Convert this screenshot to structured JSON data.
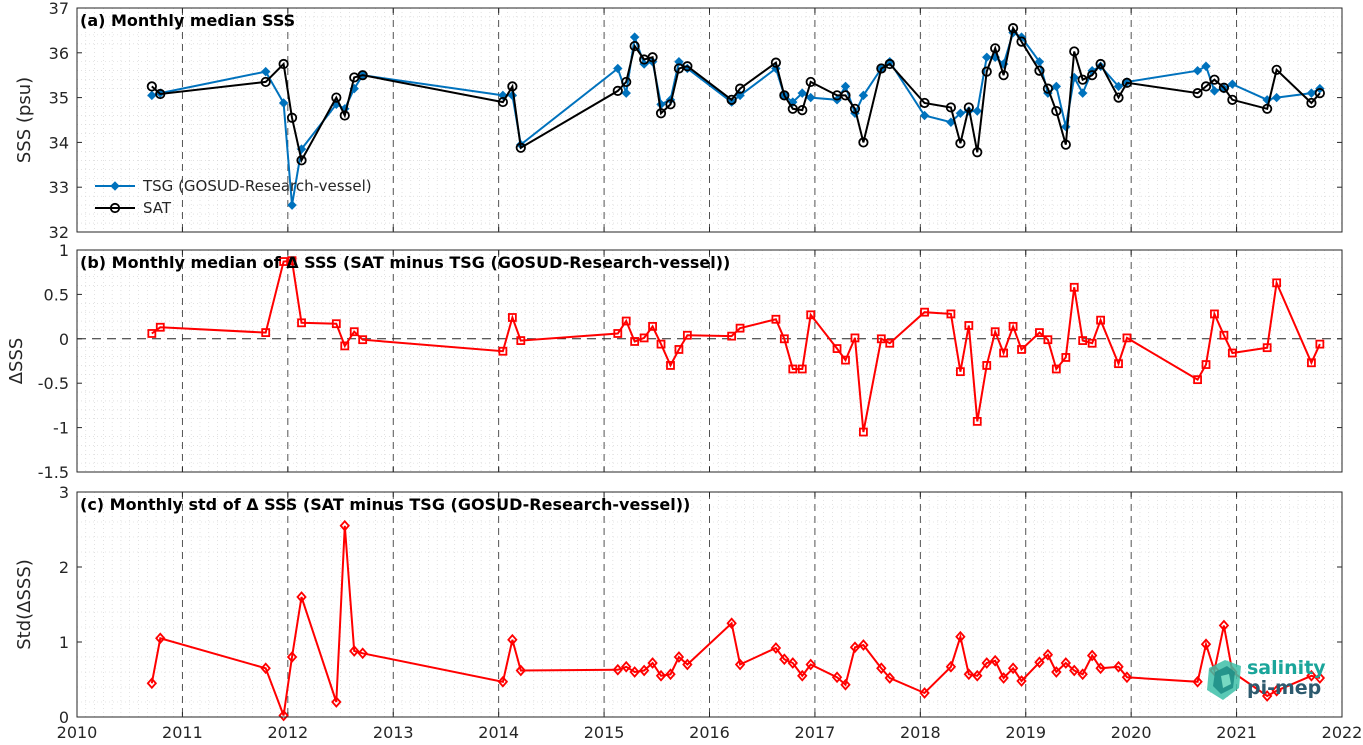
{
  "chart_data": [
    {
      "type": "line",
      "title": "(a) Monthly median SSS",
      "xlabel": "",
      "ylabel": "SSS (psu)",
      "xlim": [
        2010,
        2022
      ],
      "ylim": [
        32,
        37
      ],
      "xticks": [
        "2010",
        "2011",
        "2012",
        "2013",
        "2014",
        "2015",
        "2016",
        "2017",
        "2018",
        "2019",
        "2020",
        "2021",
        "2022"
      ],
      "yticks": [
        "32",
        "33",
        "34",
        "35",
        "36",
        "37"
      ],
      "legend": "bottom-left",
      "grid": true,
      "series": [
        {
          "name": "TSG (GOSUD-Research-vessel)",
          "color": "#0072BD",
          "marker": "diamond-filled",
          "x": [
            2010.71,
            2010.79,
            2011.79,
            2011.96,
            2012.04,
            2012.13,
            2012.46,
            2012.54,
            2012.63,
            2012.71,
            2014.04,
            2014.13,
            2014.21,
            2015.13,
            2015.21,
            2015.29,
            2015.38,
            2015.46,
            2015.54,
            2015.63,
            2015.71,
            2015.79,
            2016.21,
            2016.29,
            2016.63,
            2016.71,
            2016.79,
            2016.88,
            2016.96,
            2017.21,
            2017.29,
            2017.38,
            2017.46,
            2017.63,
            2017.71,
            2018.04,
            2018.29,
            2018.38,
            2018.46,
            2018.54,
            2018.63,
            2018.71,
            2018.79,
            2018.88,
            2018.96,
            2019.13,
            2019.21,
            2019.29,
            2019.38,
            2019.46,
            2019.54,
            2019.63,
            2019.71,
            2019.88,
            2019.96,
            2020.63,
            2020.71,
            2020.79,
            2020.88,
            2020.96,
            2021.29,
            2021.38,
            2021.71,
            2021.79
          ],
          "y": [
            35.05,
            35.1,
            35.58,
            34.88,
            32.6,
            33.85,
            34.85,
            34.75,
            35.2,
            35.5,
            35.05,
            35.05,
            33.95,
            35.65,
            35.1,
            36.35,
            35.75,
            35.8,
            34.85,
            34.95,
            35.8,
            35.65,
            34.9,
            35.05,
            35.65,
            35.05,
            34.9,
            35.1,
            35.0,
            34.95,
            35.25,
            34.65,
            35.05,
            35.65,
            35.8,
            34.6,
            34.45,
            34.65,
            34.7,
            34.7,
            35.9,
            35.9,
            35.75,
            36.45,
            36.35,
            35.8,
            35.1,
            35.25,
            34.35,
            35.45,
            35.1,
            35.6,
            35.7,
            35.25,
            35.35,
            35.6,
            35.7,
            35.15,
            35.2,
            35.3,
            34.95,
            35.0,
            35.1,
            35.2
          ]
        },
        {
          "name": "SAT",
          "color": "#000000",
          "marker": "circle-open",
          "x": [
            2010.71,
            2010.79,
            2011.79,
            2011.96,
            2012.04,
            2012.13,
            2012.46,
            2012.54,
            2012.63,
            2012.71,
            2014.04,
            2014.13,
            2014.21,
            2015.13,
            2015.21,
            2015.29,
            2015.38,
            2015.46,
            2015.54,
            2015.63,
            2015.71,
            2015.79,
            2016.21,
            2016.29,
            2016.63,
            2016.71,
            2016.79,
            2016.88,
            2016.96,
            2017.21,
            2017.29,
            2017.38,
            2017.46,
            2017.63,
            2017.71,
            2018.04,
            2018.29,
            2018.38,
            2018.46,
            2018.54,
            2018.63,
            2018.71,
            2018.79,
            2018.88,
            2018.96,
            2019.13,
            2019.21,
            2019.29,
            2019.38,
            2019.46,
            2019.54,
            2019.63,
            2019.71,
            2019.88,
            2019.96,
            2020.63,
            2020.71,
            2020.79,
            2020.88,
            2020.96,
            2021.29,
            2021.38,
            2021.71,
            2021.79
          ],
          "y": [
            35.25,
            35.08,
            35.35,
            35.75,
            34.55,
            33.6,
            35.0,
            34.6,
            35.45,
            35.5,
            34.9,
            35.25,
            33.88,
            35.15,
            35.35,
            36.15,
            35.85,
            35.9,
            34.65,
            34.85,
            35.65,
            35.7,
            34.95,
            35.2,
            35.78,
            35.05,
            34.75,
            34.72,
            35.35,
            35.05,
            35.05,
            34.75,
            34.0,
            35.65,
            35.75,
            34.88,
            34.78,
            33.98,
            34.78,
            33.78,
            35.58,
            36.1,
            35.5,
            36.55,
            36.25,
            35.6,
            35.2,
            34.7,
            33.95,
            36.03,
            35.4,
            35.5,
            35.75,
            35.0,
            35.33,
            35.1,
            35.25,
            35.4,
            35.22,
            34.95,
            34.75,
            35.62,
            34.88,
            35.1
          ]
        }
      ]
    },
    {
      "type": "line",
      "title": "(b) Monthly median of Δ SSS (SAT minus TSG (GOSUD-Research-vessel))",
      "xlabel": "",
      "ylabel": "ΔSSS",
      "xlim": [
        2010,
        2022
      ],
      "ylim": [
        -1.5,
        1
      ],
      "xticks": [
        "2010",
        "2011",
        "2012",
        "2013",
        "2014",
        "2015",
        "2016",
        "2017",
        "2018",
        "2019",
        "2020",
        "2021",
        "2022"
      ],
      "yticks": [
        "-1.5",
        "-1",
        "-0.5",
        "0",
        "0.5",
        "1"
      ],
      "reference_line": 0,
      "grid": true,
      "series": [
        {
          "name": "",
          "color": "#FF0000",
          "marker": "square-open",
          "x": [
            2010.71,
            2010.79,
            2011.79,
            2011.96,
            2012.04,
            2012.13,
            2012.46,
            2012.54,
            2012.63,
            2012.71,
            2014.04,
            2014.13,
            2014.21,
            2015.13,
            2015.21,
            2015.29,
            2015.38,
            2015.46,
            2015.54,
            2015.63,
            2015.71,
            2015.79,
            2016.21,
            2016.29,
            2016.63,
            2016.71,
            2016.79,
            2016.88,
            2016.96,
            2017.21,
            2017.29,
            2017.38,
            2017.46,
            2017.63,
            2017.71,
            2018.04,
            2018.29,
            2018.38,
            2018.46,
            2018.54,
            2018.63,
            2018.71,
            2018.79,
            2018.88,
            2018.96,
            2019.13,
            2019.21,
            2019.29,
            2019.38,
            2019.46,
            2019.54,
            2019.63,
            2019.71,
            2019.88,
            2019.96,
            2020.63,
            2020.71,
            2020.79,
            2020.88,
            2020.96,
            2021.29,
            2021.38,
            2021.71,
            2021.79
          ],
          "y": [
            0.06,
            0.13,
            0.07,
            0.87,
            0.88,
            0.18,
            0.17,
            -0.08,
            0.08,
            -0.01,
            -0.14,
            0.24,
            -0.02,
            0.06,
            0.2,
            -0.03,
            0.01,
            0.14,
            -0.06,
            -0.3,
            -0.12,
            0.04,
            0.03,
            0.12,
            0.22,
            0.0,
            -0.34,
            -0.34,
            0.27,
            -0.11,
            -0.24,
            0.01,
            -1.05,
            0.0,
            -0.05,
            0.3,
            0.28,
            -0.37,
            0.15,
            -0.93,
            -0.3,
            0.08,
            -0.16,
            0.14,
            -0.12,
            0.07,
            -0.01,
            -0.34,
            -0.21,
            0.58,
            -0.02,
            -0.05,
            0.21,
            -0.28,
            0.01,
            -0.46,
            -0.29,
            0.28,
            0.04,
            -0.16,
            -0.1,
            0.63,
            -0.27,
            -0.06
          ]
        }
      ]
    },
    {
      "type": "line",
      "title": "(c) Monthly std of Δ SSS (SAT minus TSG (GOSUD-Research-vessel))",
      "xlabel": "",
      "ylabel": "Std(ΔSSS)",
      "xlim": [
        2010,
        2022
      ],
      "ylim": [
        0,
        3
      ],
      "xticks": [
        "2010",
        "2011",
        "2012",
        "2013",
        "2014",
        "2015",
        "2016",
        "2017",
        "2018",
        "2019",
        "2020",
        "2021",
        "2022"
      ],
      "yticks": [
        "0",
        "1",
        "2",
        "3"
      ],
      "grid": true,
      "series": [
        {
          "name": "",
          "color": "#FF0000",
          "marker": "diamond-open",
          "x": [
            2010.71,
            2010.79,
            2011.79,
            2011.96,
            2012.04,
            2012.13,
            2012.46,
            2012.54,
            2012.63,
            2012.71,
            2014.04,
            2014.13,
            2014.21,
            2015.13,
            2015.21,
            2015.29,
            2015.38,
            2015.46,
            2015.54,
            2015.63,
            2015.71,
            2015.79,
            2016.21,
            2016.29,
            2016.63,
            2016.71,
            2016.79,
            2016.88,
            2016.96,
            2017.21,
            2017.29,
            2017.38,
            2017.46,
            2017.63,
            2017.71,
            2018.04,
            2018.29,
            2018.38,
            2018.46,
            2018.54,
            2018.63,
            2018.71,
            2018.79,
            2018.88,
            2018.96,
            2019.13,
            2019.21,
            2019.29,
            2019.38,
            2019.46,
            2019.54,
            2019.63,
            2019.71,
            2019.88,
            2019.96,
            2020.63,
            2020.71,
            2020.79,
            2020.88,
            2020.96,
            2021.29,
            2021.38,
            2021.71,
            2021.79
          ],
          "y": [
            0.45,
            1.05,
            0.65,
            0.02,
            0.8,
            1.6,
            0.2,
            2.55,
            0.88,
            0.85,
            0.47,
            1.03,
            0.62,
            0.63,
            0.67,
            0.6,
            0.62,
            0.72,
            0.55,
            0.57,
            0.8,
            0.7,
            1.25,
            0.7,
            0.92,
            0.77,
            0.72,
            0.55,
            0.7,
            0.53,
            0.43,
            0.93,
            0.96,
            0.65,
            0.52,
            0.32,
            0.67,
            1.07,
            0.57,
            0.55,
            0.72,
            0.75,
            0.52,
            0.65,
            0.48,
            0.73,
            0.83,
            0.6,
            0.72,
            0.62,
            0.57,
            0.82,
            0.65,
            0.67,
            0.53,
            0.47,
            0.97,
            0.62,
            1.22,
            0.6,
            0.28,
            0.35,
            0.55,
            0.52
          ]
        }
      ]
    }
  ],
  "logo": {
    "word1": "salinity",
    "word2": "pi-mep"
  }
}
